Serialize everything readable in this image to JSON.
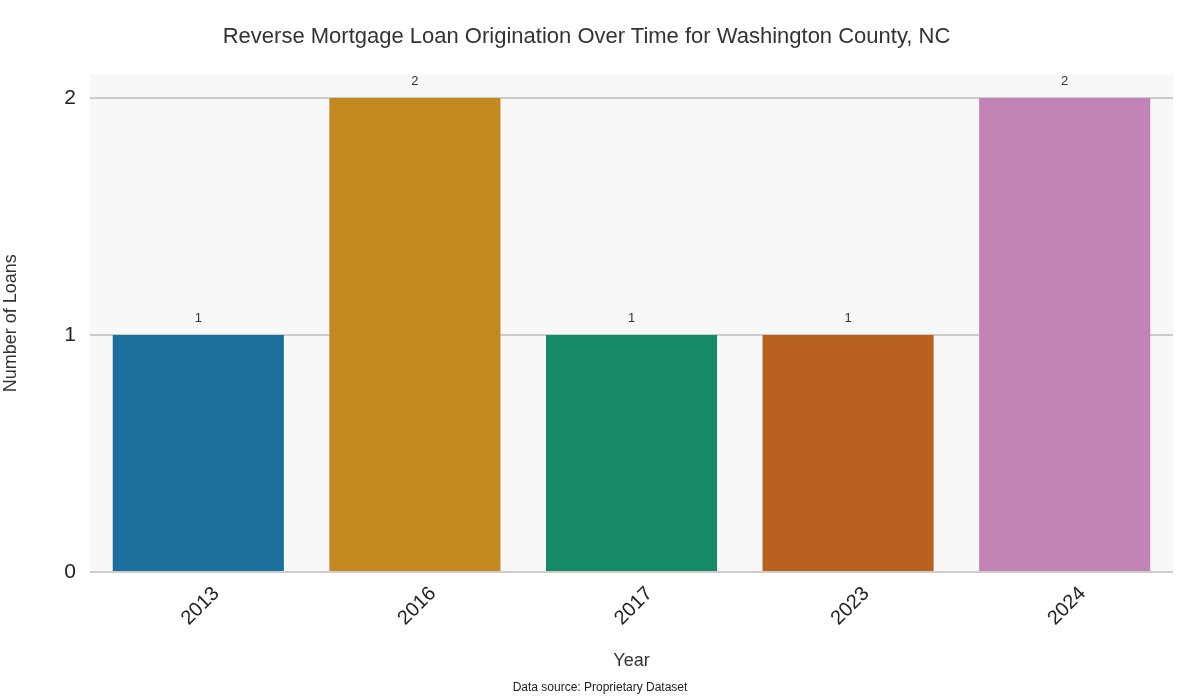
{
  "chart_data": {
    "type": "bar",
    "title": "Reverse Mortgage Loan Origination Over Time for Washington County, NC",
    "xlabel": "Year",
    "ylabel": "Number of Loans",
    "categories": [
      "2013",
      "2016",
      "2017",
      "2023",
      "2024"
    ],
    "values": [
      1,
      2,
      1,
      1,
      2
    ],
    "colors": [
      "#1a6f9c",
      "#c38820",
      "#178a6a",
      "#b9611e",
      "#c283b5"
    ],
    "ylim": [
      0,
      2.1
    ],
    "yticks": [
      0,
      1,
      2
    ],
    "grid": "y",
    "data_labels": true,
    "annotations": [
      "Data source: Proprietary Dataset"
    ]
  }
}
